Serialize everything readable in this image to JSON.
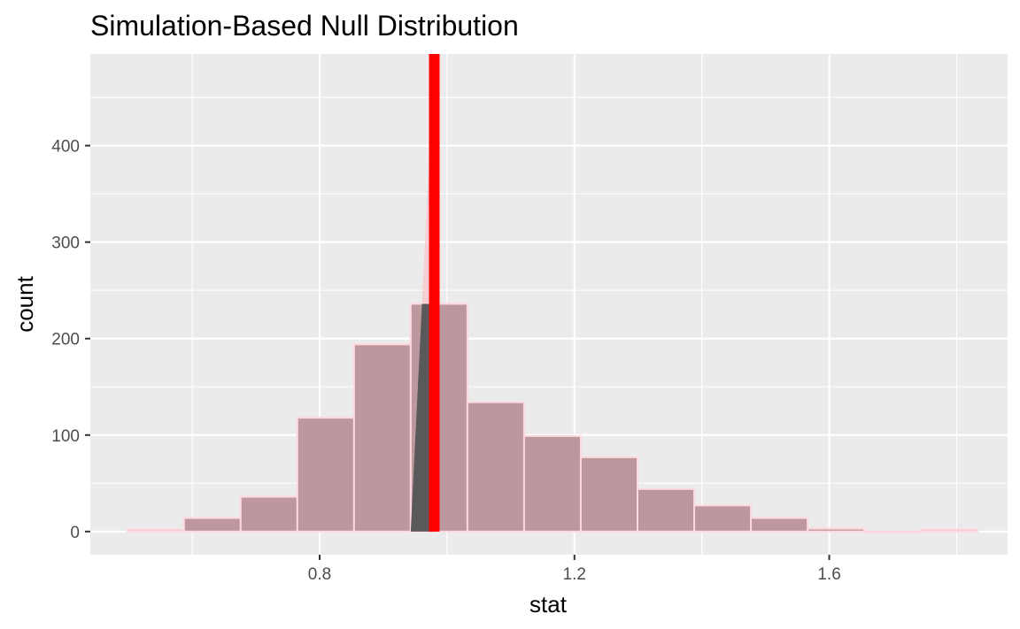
{
  "chart_data": {
    "type": "bar",
    "title": "Simulation-Based Null Distribution",
    "xlabel": "stat",
    "ylabel": "count",
    "xlim": [
      0.44,
      1.88
    ],
    "ylim": [
      -24,
      495
    ],
    "x_ticks": [
      0.8,
      1.2,
      1.6
    ],
    "x_tick_labels": [
      "0.8",
      "1.2",
      "1.6"
    ],
    "y_ticks": [
      0,
      100,
      200,
      300,
      400
    ],
    "y_tick_labels": [
      "0",
      "100",
      "200",
      "300",
      "400"
    ],
    "grid": true,
    "legend": "none",
    "bins": [
      {
        "x0": 0.498,
        "x1": 0.587,
        "count": 2
      },
      {
        "x0": 0.587,
        "x1": 0.676,
        "count": 14
      },
      {
        "x0": 0.676,
        "x1": 0.765,
        "count": 36
      },
      {
        "x0": 0.765,
        "x1": 0.854,
        "count": 118
      },
      {
        "x0": 0.854,
        "x1": 0.943,
        "count": 194
      },
      {
        "x0": 0.943,
        "x1": 1.032,
        "count": 236
      },
      {
        "x0": 1.032,
        "x1": 1.121,
        "count": 134
      },
      {
        "x0": 1.121,
        "x1": 1.21,
        "count": 99
      },
      {
        "x0": 1.21,
        "x1": 1.299,
        "count": 77
      },
      {
        "x0": 1.299,
        "x1": 1.388,
        "count": 44
      },
      {
        "x0": 1.388,
        "x1": 1.477,
        "count": 27
      },
      {
        "x0": 1.477,
        "x1": 1.566,
        "count": 14
      },
      {
        "x0": 1.566,
        "x1": 1.655,
        "count": 3
      },
      {
        "x0": 1.655,
        "x1": 1.744,
        "count": 0
      },
      {
        "x0": 1.744,
        "x1": 1.833,
        "count": 2
      }
    ],
    "observed_stat": 0.98,
    "shade_region": {
      "x_start": 0.943,
      "x_end": 0.98,
      "count_at_start": 0,
      "count_at_end": 495
    },
    "colors": {
      "panel": "#ebebeb",
      "grid": "#ffffff",
      "bar_fill": "#bc989e",
      "bar_stroke": "#ffd7de",
      "shade_fill": "#ffb6c1",
      "shade_overlap": "#595959",
      "observed_line": "#ff0000"
    }
  }
}
